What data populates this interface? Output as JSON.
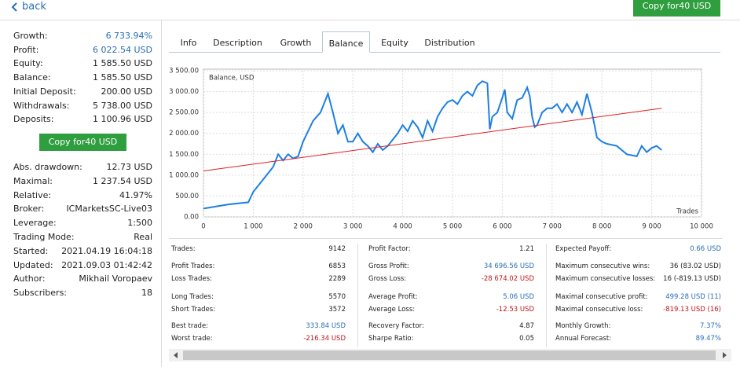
{
  "header": {
    "back": "back",
    "copy_button": "Copy for40  USD"
  },
  "summary": [
    {
      "label": "Growth:",
      "value": "6 733.94%",
      "color": "#2a6db5"
    },
    {
      "label": "Profit:",
      "value": "6 022.54 USD",
      "color": "#2a6db5"
    },
    {
      "label": "Equity:",
      "value": "1 585.50 USD"
    },
    {
      "label": "Balance:",
      "value": "1 585.50 USD"
    },
    {
      "label": "Initial Deposit:",
      "value": "200.00 USD"
    },
    {
      "label": "Withdrawals:",
      "value": "5 738.00 USD"
    },
    {
      "label": "Deposits:",
      "value": "1 100.96 USD"
    }
  ],
  "copy_button": "Copy for40  USD",
  "details": [
    {
      "label": "Abs. drawdown:",
      "value": "12.73 USD"
    },
    {
      "label": "Maximal:",
      "value": "1 237.54 USD"
    },
    {
      "label": "Relative:",
      "value": "41.97%"
    },
    {
      "label": "Broker:",
      "value": "ICMarketsSC-Live03"
    },
    {
      "label": "Leverage:",
      "value": "1:500"
    },
    {
      "label": "Trading Mode:",
      "value": "Real"
    },
    {
      "label": "Started:",
      "value": "2021.04.19 16:04:18"
    },
    {
      "label": "Updated:",
      "value": "2021.09.03 01:42:42"
    },
    {
      "label": "Author:",
      "value": "Mikhail Voropaev"
    },
    {
      "label": "Subscribers:",
      "value": "18"
    }
  ],
  "tabs": [
    "Info",
    "Description",
    "Growth",
    "Balance",
    "Equity",
    "Distribution"
  ],
  "active_tab": "Balance",
  "chart_data": {
    "type": "line",
    "legend_label": "Balance, USD",
    "x_label": "Trades",
    "xlim": [
      0,
      10000
    ],
    "xticks": [
      0,
      {
        "value": 1000,
        "label": "1 000"
      },
      {
        "value": 2000,
        "label": "2 000"
      },
      {
        "value": 3000,
        "label": "3 000"
      },
      {
        "value": 4000,
        "label": "4 000"
      },
      {
        "value": 5000,
        "label": "5 000"
      },
      {
        "value": 6000,
        "label": "6 000"
      },
      {
        "value": 7000,
        "label": "7 000"
      },
      {
        "value": 8000,
        "label": "8 000"
      },
      {
        "value": 9000,
        "label": "9 000"
      },
      {
        "value": 10000,
        "label": "10 000"
      }
    ],
    "ylim": [
      0,
      3500
    ],
    "yticks": [
      {
        "value": 0,
        "label": "0.00"
      },
      {
        "value": 500,
        "label": "500.00"
      },
      {
        "value": 1000,
        "label": "1 000.00"
      },
      {
        "value": 1500,
        "label": "1 500.00"
      },
      {
        "value": 2000,
        "label": "2 000.00"
      },
      {
        "value": 2500,
        "label": "2 500.00"
      },
      {
        "value": 3000,
        "label": "3 000.00"
      },
      {
        "value": 3500,
        "label": "3 500.00"
      }
    ],
    "grid": true,
    "series": [
      {
        "color": "#1e7fe0",
        "x": [
          0,
          500,
          900,
          1000,
          1200,
          1400,
          1500,
          1600,
          1700,
          1800,
          1900,
          2000,
          2200,
          2350,
          2500,
          2600,
          2700,
          2800,
          2900,
          3000,
          3100,
          3200,
          3300,
          3400,
          3500,
          3600,
          3700,
          3800,
          3900,
          4000,
          4100,
          4200,
          4300,
          4400,
          4500,
          4600,
          4700,
          4800,
          4900,
          5000,
          5100,
          5200,
          5300,
          5400,
          5500,
          5600,
          5700,
          5750,
          5800,
          5900,
          6000,
          6050,
          6100,
          6200,
          6300,
          6400,
          6500,
          6550,
          6600,
          6650,
          6700,
          6800,
          6900,
          7000,
          7100,
          7200,
          7300,
          7400,
          7500,
          7600,
          7700,
          7800,
          7900,
          8000,
          8100,
          8300,
          8500,
          8700,
          8800,
          8900,
          9000,
          9100,
          9200
        ],
        "values": [
          200,
          300,
          350,
          600,
          900,
          1200,
          1500,
          1350,
          1500,
          1400,
          1450,
          1800,
          2300,
          2500,
          2950,
          2500,
          2000,
          2200,
          1800,
          1800,
          2000,
          1800,
          1700,
          1550,
          1750,
          1600,
          1700,
          1850,
          2000,
          2200,
          2050,
          2300,
          2150,
          1900,
          2300,
          2050,
          2400,
          2600,
          2750,
          2800,
          2700,
          2900,
          3000,
          2900,
          3150,
          3250,
          3200,
          2100,
          2400,
          2500,
          2850,
          3050,
          2500,
          2350,
          2800,
          2850,
          3100,
          2900,
          2400,
          2150,
          2200,
          2500,
          2600,
          2600,
          2700,
          2500,
          2700,
          2500,
          2750,
          2450,
          2950,
          2500,
          1900,
          1800,
          1750,
          1700,
          1500,
          1450,
          1700,
          1550,
          1650,
          1700,
          1600
        ]
      },
      {
        "color": "#e02020",
        "x": [
          0,
          9200
        ],
        "values": [
          1100,
          2600
        ]
      }
    ]
  },
  "stats": [
    [
      {
        "label": "Trades:",
        "value": "9142"
      },
      {
        "label": "Profit Trades:",
        "value": "6853"
      },
      {
        "label": "Loss Trades:",
        "value": "2289"
      },
      {
        "label": "Long Trades:",
        "value": "5570"
      },
      {
        "label": "Short Trades:",
        "value": "3572"
      },
      {
        "label": "Best trade:",
        "value": "333.84 USD",
        "color": "#2a6db5"
      },
      {
        "label": "Worst trade:",
        "value": "-216.34 USD",
        "color": "#c0141b"
      }
    ],
    [
      {
        "label": "Profit Factor:",
        "value": "1.21"
      },
      {
        "label": "Gross Profit:",
        "value": "34 696.56 USD",
        "color": "#2a6db5"
      },
      {
        "label": "Gross Loss:",
        "value": "-28 674.02 USD",
        "color": "#c0141b"
      },
      {
        "label": "Average Profit:",
        "value": "5.06 USD",
        "color": "#2a6db5"
      },
      {
        "label": "Average Loss:",
        "value": "-12.53 USD",
        "color": "#c0141b"
      },
      {
        "label": "Recovery Factor:",
        "value": "4.87"
      },
      {
        "label": "Sharpe Ratio:",
        "value": "0.05"
      }
    ],
    [
      {
        "label": "Expected Payoff:",
        "value": "0.66 USD",
        "color": "#2a6db5"
      },
      {
        "label": "Maximum consecutive wins:",
        "value": "36 (83.02 USD)"
      },
      {
        "label": "Maximum consecutive losses:",
        "value": "16 (-819.13 USD)"
      },
      {
        "label": "Maximal consecutive profit:",
        "value": "499.28 USD (11)",
        "color": "#2a6db5"
      },
      {
        "label": "Maximal consecutive loss:",
        "value": "-819.13 USD (16)",
        "color": "#c0141b"
      },
      {
        "label": "Monthly Growth:",
        "value": "7.37%",
        "color": "#2a6db5"
      },
      {
        "label": "Annual Forecast:",
        "value": "89.47%",
        "color": "#2a6db5"
      }
    ]
  ]
}
